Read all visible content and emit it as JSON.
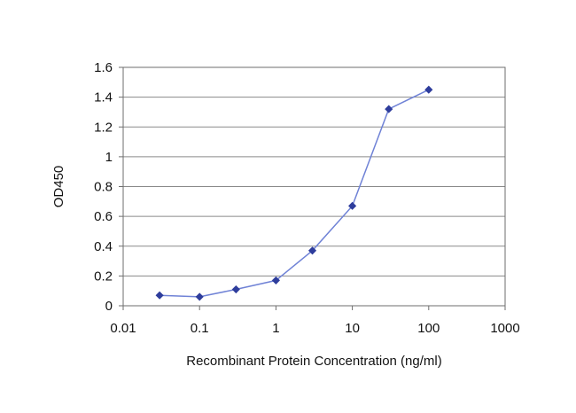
{
  "chart_data": {
    "type": "line",
    "title": "",
    "xlabel": "Recombinant Protein Concentration (ng/ml)",
    "ylabel": "OD450",
    "x_scale": "log",
    "xlim": [
      0.01,
      1000
    ],
    "ylim": [
      0,
      1.6
    ],
    "x_ticks": [
      0.01,
      0.1,
      1,
      10,
      100,
      1000
    ],
    "x_tick_labels": [
      "0.01",
      "0.1",
      "1",
      "10",
      "100",
      "1000"
    ],
    "y_ticks": [
      0,
      0.2,
      0.4,
      0.6,
      0.8,
      1,
      1.2,
      1.4,
      1.6
    ],
    "y_tick_labels": [
      "0",
      "0.2",
      "0.4",
      "0.6",
      "0.8",
      "1",
      "1.2",
      "1.4",
      "1.6"
    ],
    "grid": "horizontal",
    "legend": "none",
    "series": [
      {
        "color": "#2e3d9c",
        "marker": "diamond",
        "x": [
          0.03,
          0.1,
          0.3,
          1,
          3,
          10,
          30,
          100
        ],
        "y": [
          0.07,
          0.06,
          0.11,
          0.17,
          0.37,
          0.67,
          1.32,
          1.45
        ]
      }
    ]
  }
}
